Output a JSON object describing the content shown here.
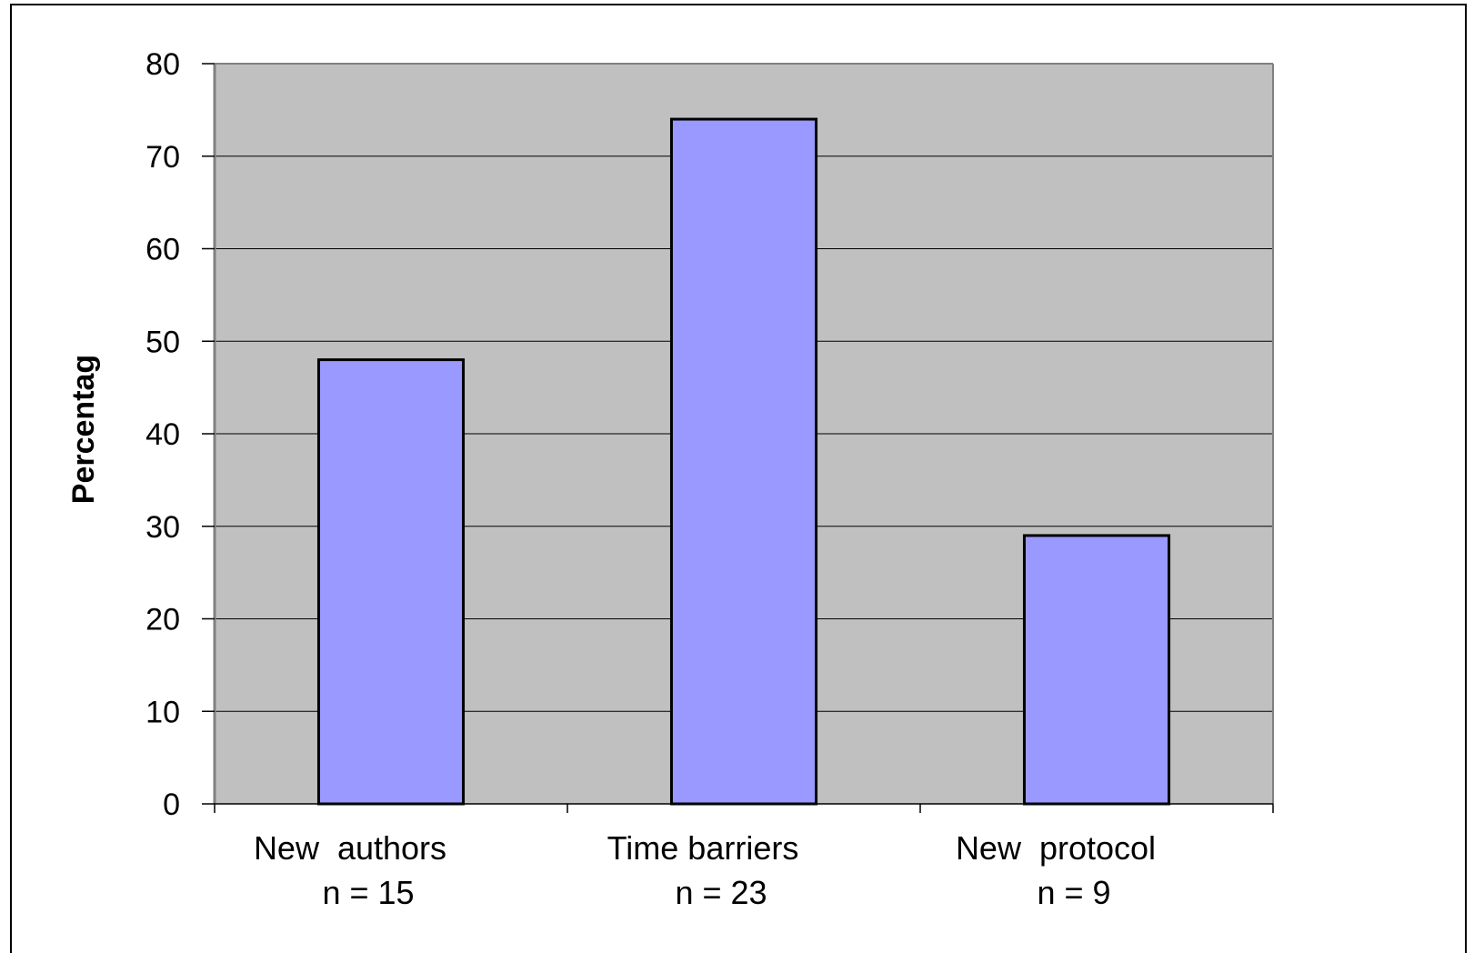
{
  "chart_data": {
    "type": "bar",
    "title": "",
    "xlabel": "",
    "ylabel": "Percentag",
    "ylim": [
      0,
      80
    ],
    "yticks": [
      0,
      10,
      20,
      30,
      40,
      50,
      60,
      70,
      80
    ],
    "grid": true,
    "legend": "none",
    "categories": [
      {
        "label": "New  authors",
        "sublabel": "n = 15"
      },
      {
        "label": "Time barriers",
        "sublabel": "n = 23"
      },
      {
        "label": "New  protocol",
        "sublabel": "n = 9"
      }
    ],
    "values": [
      48,
      74,
      29
    ],
    "colors": {
      "plot_background": "#c0c0c0",
      "bar_fill": "#9999ff",
      "bar_stroke": "#000000",
      "gridline": "#000000"
    }
  }
}
